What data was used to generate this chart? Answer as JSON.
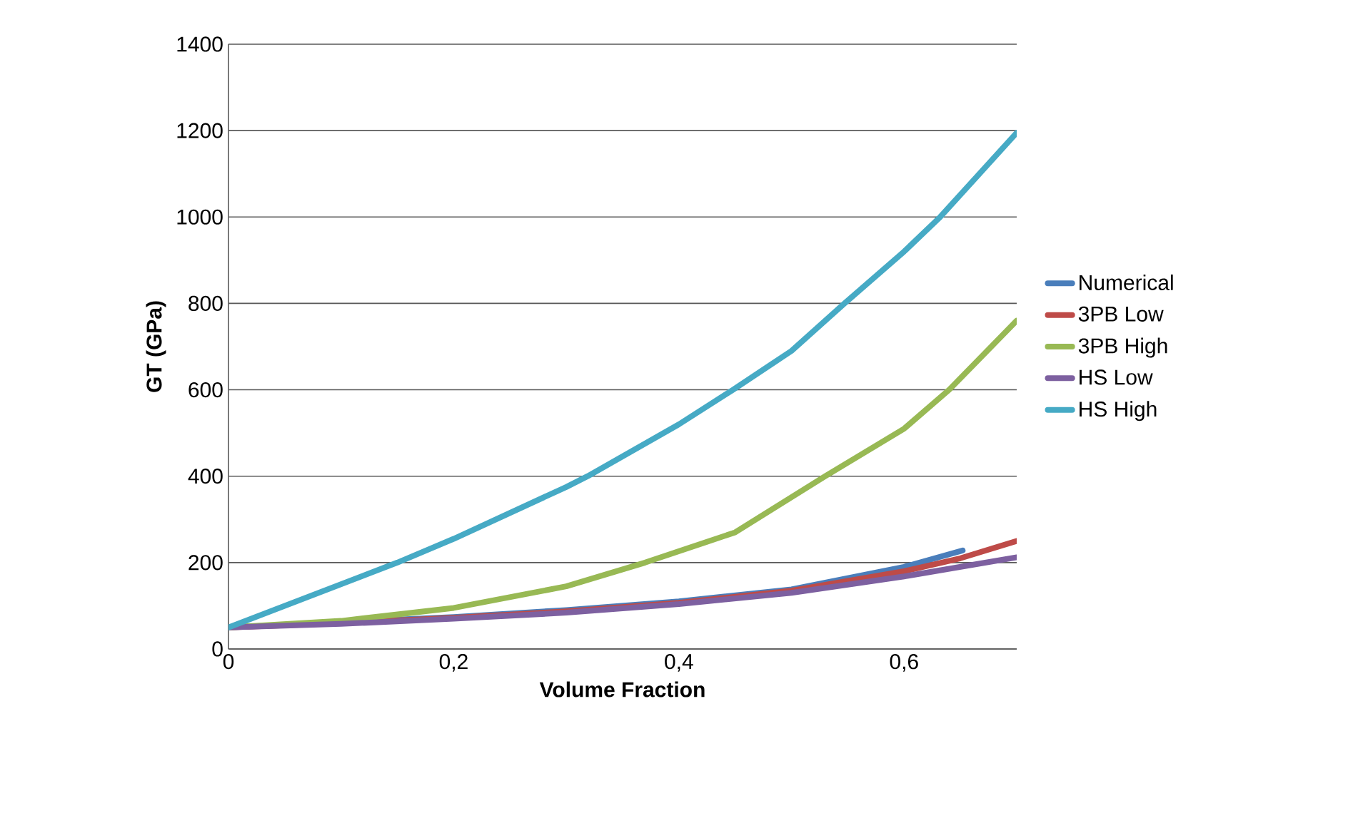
{
  "chart_data": {
    "type": "line",
    "xlabel": "Volume Fraction",
    "ylabel": "GT (GPa)",
    "xlim": [
      0,
      0.7
    ],
    "xticks": [
      0,
      {
        "value": 0.2,
        "label": "0,2"
      },
      {
        "value": 0.4,
        "label": "0,4"
      },
      {
        "value": 0.6,
        "label": "0,6"
      }
    ],
    "ylim": [
      0,
      1400
    ],
    "yticks": [
      0,
      200,
      400,
      600,
      800,
      1000,
      1200,
      1400
    ],
    "grid": "y",
    "legend": "right",
    "marker": "none",
    "line_style": "solid",
    "series": [
      {
        "name": "Numerical",
        "color": "#4a7ebb",
        "x": [
          0,
          0.1,
          0.2,
          0.3,
          0.4,
          0.5,
          0.6,
          0.652
        ],
        "values": [
          50,
          62,
          74,
          90,
          110,
          138,
          190,
          228
        ]
      },
      {
        "name": "3PB Low",
        "color": "#be4b48",
        "x": [
          0,
          0.1,
          0.2,
          0.3,
          0.4,
          0.5,
          0.6,
          0.65,
          0.7
        ],
        "values": [
          50,
          60,
          72,
          87,
          107,
          135,
          180,
          210,
          250
        ]
      },
      {
        "name": "3PB High",
        "color": "#98b954",
        "x": [
          0,
          0.1,
          0.2,
          0.3,
          0.37,
          0.45,
          0.53,
          0.6,
          0.64,
          0.7
        ],
        "values": [
          50,
          65,
          95,
          145,
          200,
          270,
          400,
          510,
          600,
          760
        ]
      },
      {
        "name": "HS Low",
        "color": "#7d60a0",
        "x": [
          0,
          0.1,
          0.2,
          0.3,
          0.4,
          0.5,
          0.6,
          0.7
        ],
        "values": [
          50,
          58,
          70,
          84,
          104,
          130,
          168,
          212
        ]
      },
      {
        "name": "HS High",
        "color": "#46aac5",
        "x": [
          0,
          0.1,
          0.15,
          0.2,
          0.3,
          0.319,
          0.4,
          0.448,
          0.5,
          0.547,
          0.6,
          0.632,
          0.7
        ],
        "values": [
          50,
          150,
          200,
          255,
          375,
          400,
          520,
          600,
          690,
          800,
          920,
          1000,
          1195
        ]
      }
    ]
  }
}
